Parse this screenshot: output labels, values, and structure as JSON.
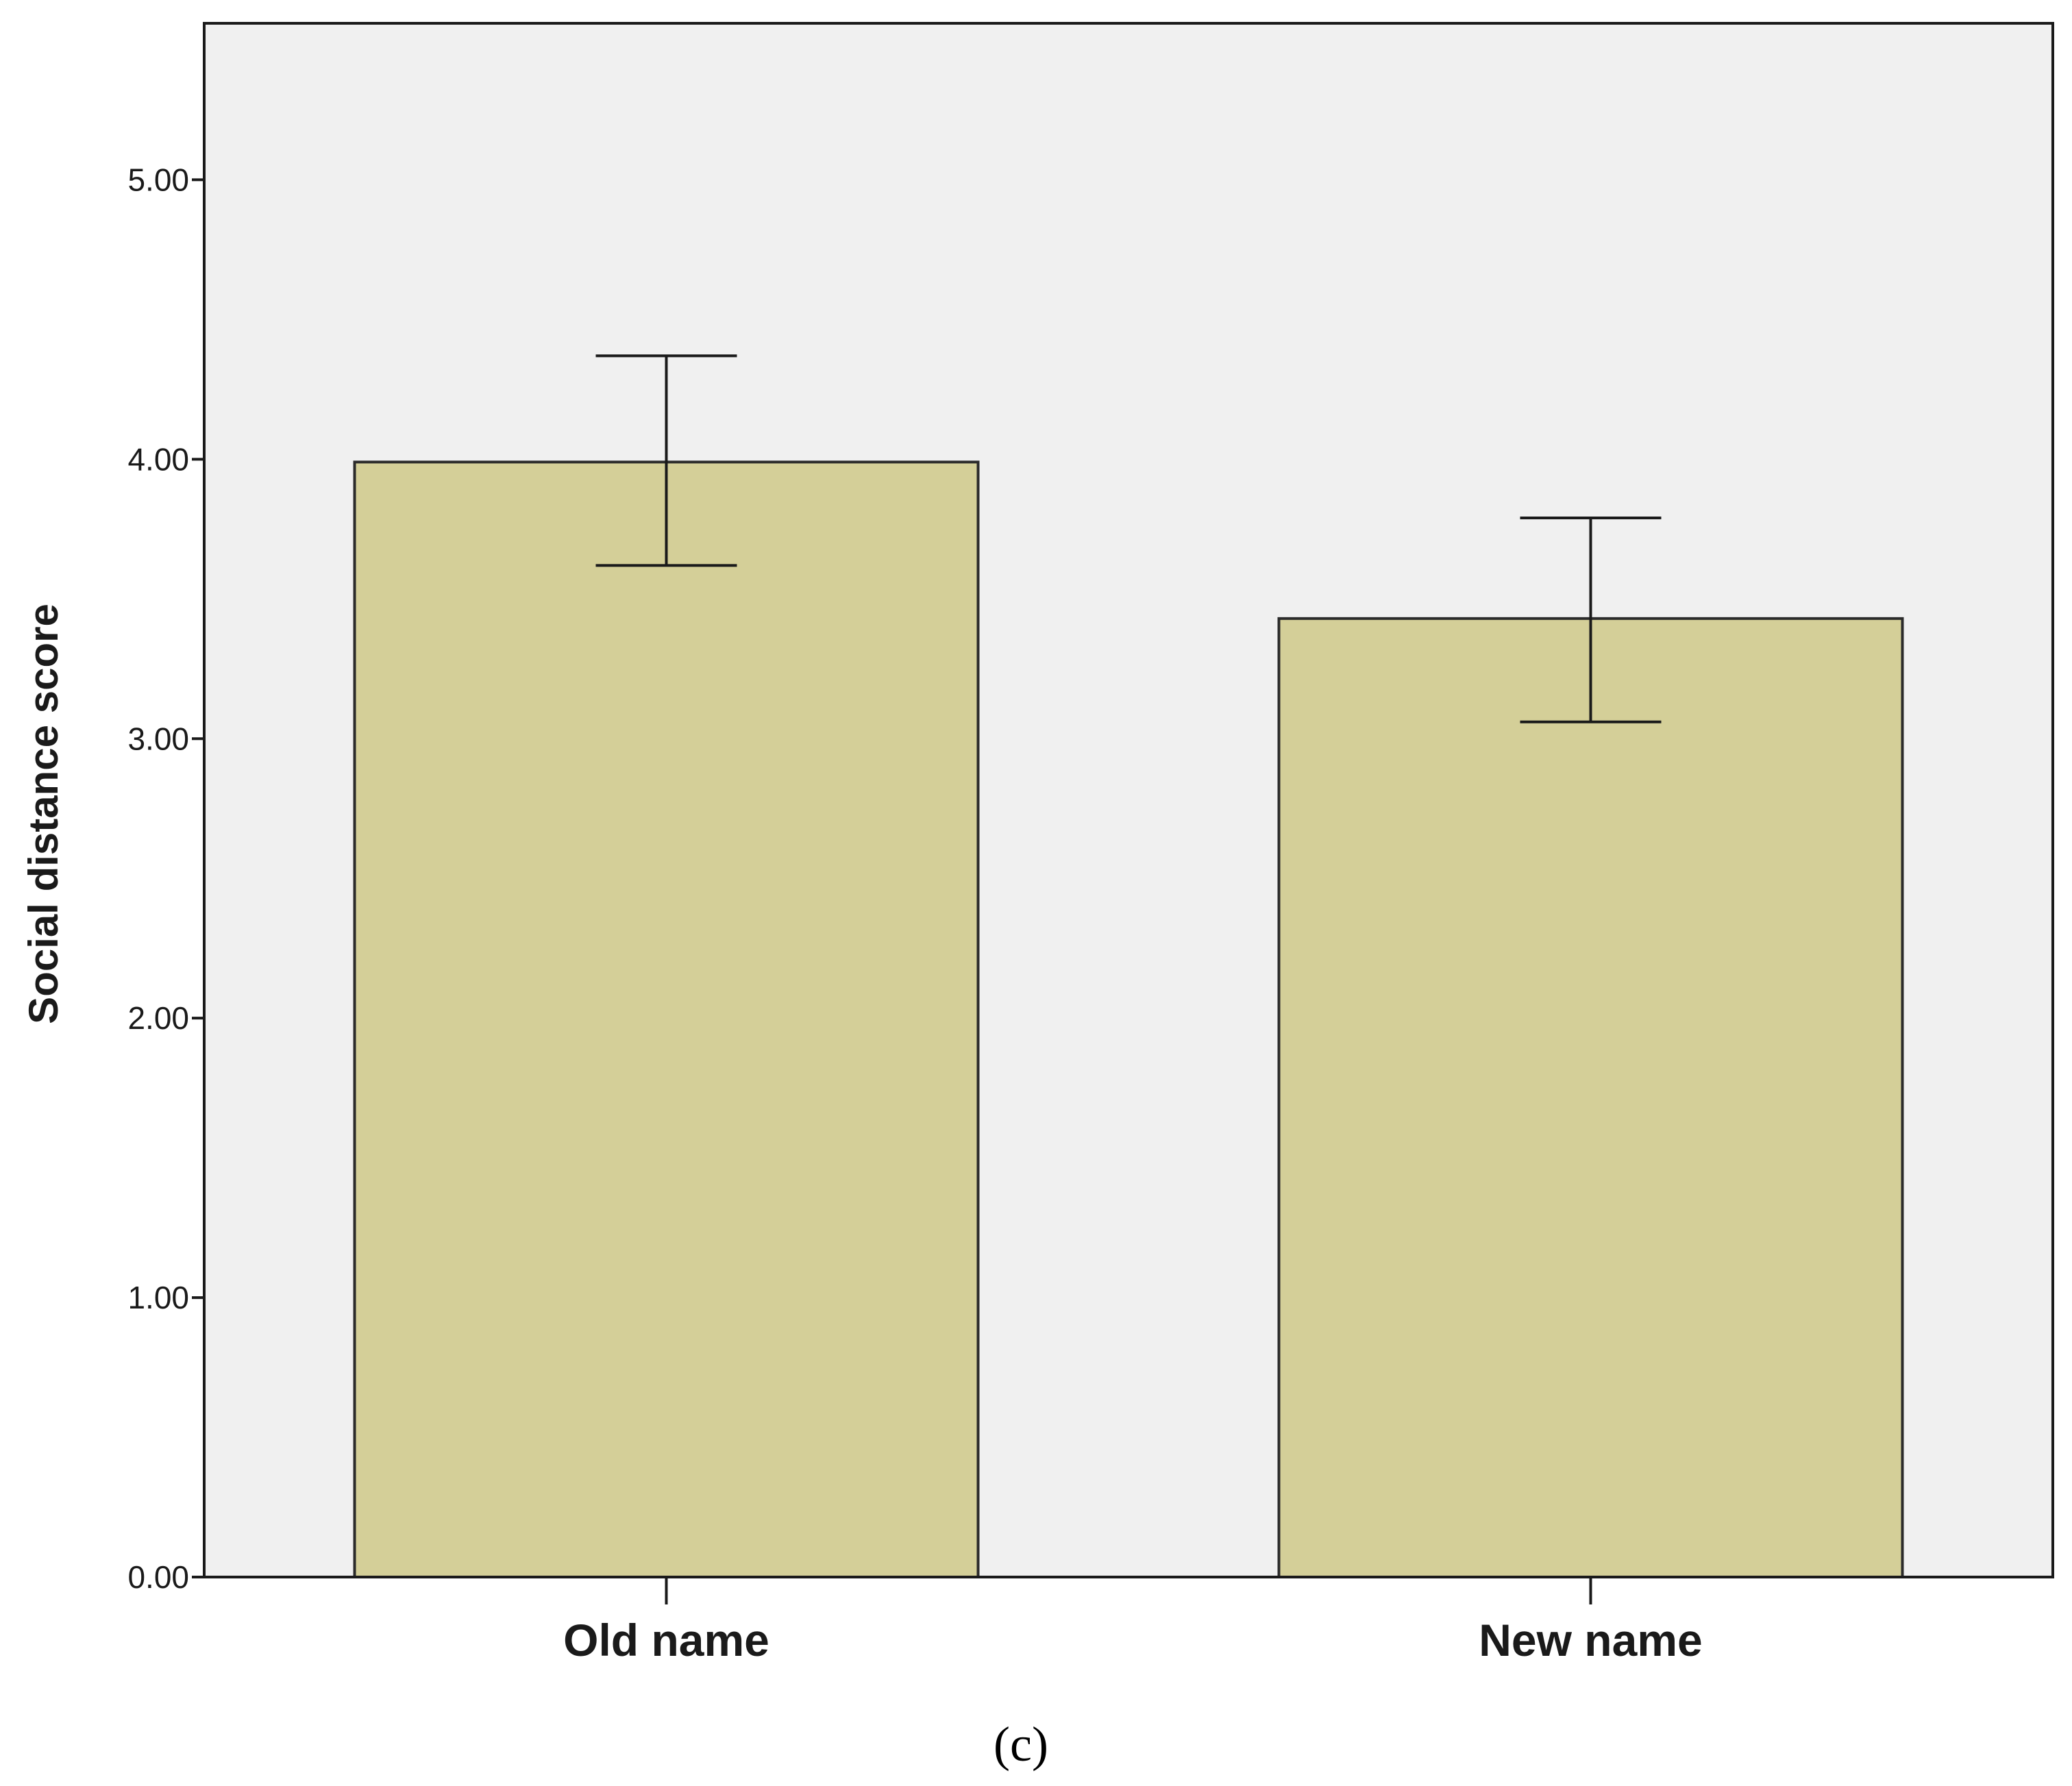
{
  "chart_data": {
    "type": "bar",
    "categories": [
      "Old name",
      "New name"
    ],
    "values": [
      3.99,
      3.43
    ],
    "error_bars": {
      "lower": [
        3.62,
        3.06
      ],
      "upper": [
        4.37,
        3.79
      ]
    },
    "title": "",
    "xlabel": "",
    "ylabel": "Social distance score",
    "ylim": [
      0,
      5.56
    ],
    "yticks": [
      0,
      1,
      2,
      3,
      4,
      5
    ],
    "ytick_labels": [
      "0.00",
      "1.00",
      "2.00",
      "3.00",
      "4.00",
      "5.00"
    ],
    "grid": false,
    "legend": "none"
  },
  "caption": "(c)",
  "colors": {
    "bar_fill": "#d4cf98",
    "bar_stroke": "#2b2b2b",
    "plot_background": "#f0f0f0",
    "axis": "#1a1a1a"
  }
}
